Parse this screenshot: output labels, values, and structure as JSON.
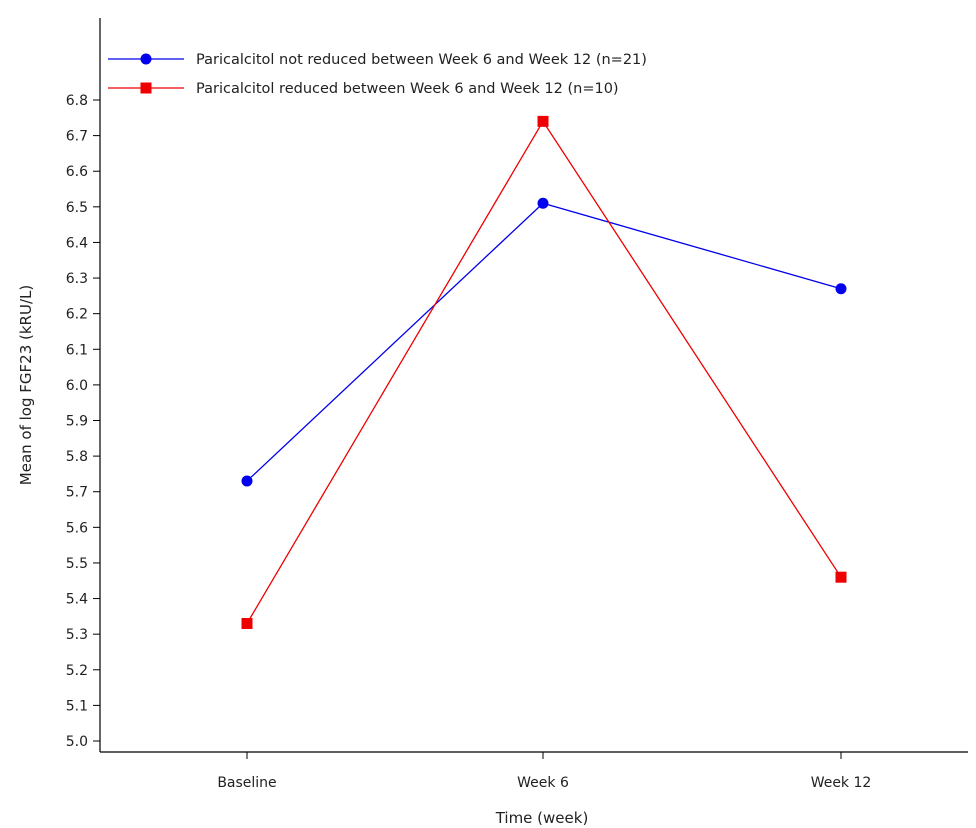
{
  "chart_data": {
    "type": "line",
    "title": "",
    "xlabel": "Time (week)",
    "ylabel": "Mean of log FGF23 (kRU/L)",
    "categories": [
      "Baseline",
      "Week 6",
      "Week 12"
    ],
    "ylim": [
      5.0,
      6.8
    ],
    "yticks": [
      "5.0",
      "5.1",
      "5.2",
      "5.3",
      "5.4",
      "5.5",
      "5.6",
      "5.7",
      "5.8",
      "5.9",
      "6.0",
      "6.1",
      "6.2",
      "6.3",
      "6.4",
      "6.5",
      "6.6",
      "6.7",
      "6.8"
    ],
    "grid": false,
    "legend_position": "top-left",
    "series": [
      {
        "name": "Paricalcitol not reduced between Week 6 and Week 12 (n=21)",
        "values": [
          5.73,
          6.51,
          6.27
        ],
        "color": "#0000ee",
        "marker": "circle"
      },
      {
        "name": "Paricalcitol reduced between Week 6 and Week 12 (n=10)",
        "values": [
          5.33,
          6.74,
          5.46
        ],
        "color": "#ee0000",
        "marker": "square"
      }
    ]
  }
}
